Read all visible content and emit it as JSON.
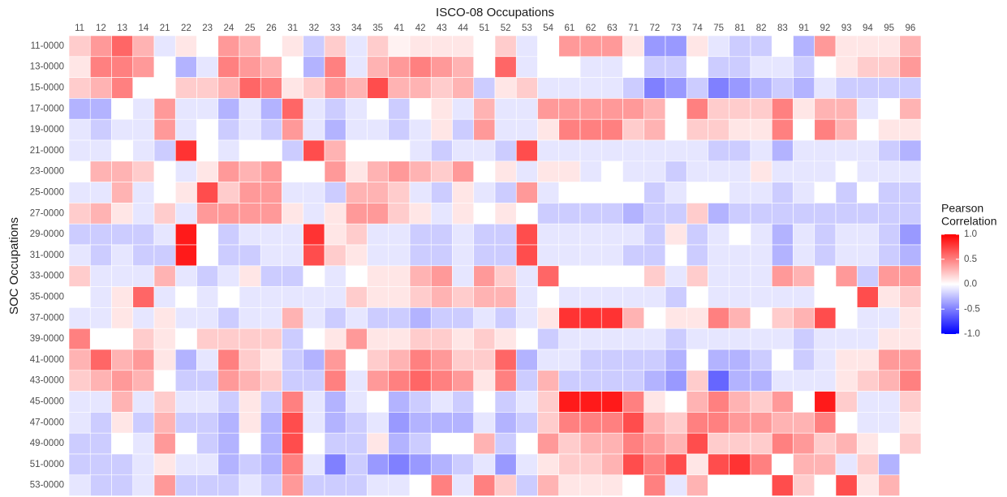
{
  "chart_data": {
    "type": "heatmap",
    "title": "ISCO-08 Occupations",
    "y_label": "SOC Occupations",
    "legend_title": [
      "Pearson",
      "Correlation"
    ],
    "x_categories": [
      "11",
      "12",
      "13",
      "14",
      "21",
      "22",
      "23",
      "24",
      "25",
      "26",
      "31",
      "32",
      "33",
      "34",
      "35",
      "41",
      "42",
      "43",
      "44",
      "51",
      "52",
      "53",
      "54",
      "61",
      "62",
      "63",
      "71",
      "72",
      "73",
      "74",
      "75",
      "81",
      "82",
      "83",
      "91",
      "92",
      "93",
      "94",
      "95",
      "96"
    ],
    "y_categories": [
      "11-0000",
      "13-0000",
      "15-0000",
      "17-0000",
      "19-0000",
      "21-0000",
      "23-0000",
      "25-0000",
      "27-0000",
      "29-0000",
      "31-0000",
      "33-0000",
      "35-0000",
      "37-0000",
      "39-0000",
      "41-0000",
      "43-0000",
      "45-0000",
      "47-0000",
      "49-0000",
      "51-0000",
      "53-0000"
    ],
    "values": [
      [
        0.2,
        0.4,
        0.6,
        0.3,
        -0.1,
        0.1,
        0,
        0.4,
        0.3,
        0,
        0.1,
        -0.2,
        0.2,
        -0.1,
        0.2,
        0.05,
        0.1,
        0.1,
        0.1,
        0,
        0.2,
        -0.1,
        0,
        0.4,
        0.4,
        0.4,
        0.1,
        -0.4,
        -0.4,
        0.1,
        -0.1,
        -0.2,
        -0.2,
        0,
        -0.3,
        0.4,
        0.1,
        0.1,
        0.1,
        0.3
      ],
      [
        0.1,
        0.5,
        0.5,
        0.4,
        0,
        -0.3,
        -0.1,
        0.5,
        0.4,
        0.3,
        0,
        -0.3,
        0.5,
        -0.1,
        0.3,
        0.4,
        0.5,
        0.4,
        0.3,
        0,
        0.6,
        -0.1,
        0,
        0,
        -0.1,
        -0.1,
        0,
        -0.2,
        -0.2,
        0,
        -0.2,
        -0.2,
        -0.1,
        -0.1,
        -0.2,
        0,
        0.1,
        0.2,
        0.2,
        0.4
      ],
      [
        0.2,
        0.3,
        0.5,
        0,
        0,
        0.2,
        0.2,
        0.3,
        0.6,
        0.5,
        0.1,
        0.2,
        0.4,
        0.3,
        0.7,
        0.3,
        0.3,
        0.2,
        0.3,
        -0.2,
        0.1,
        0.2,
        -0.1,
        -0.1,
        -0.1,
        -0.1,
        -0.2,
        -0.5,
        -0.4,
        -0.2,
        -0.5,
        -0.4,
        -0.3,
        -0.2,
        -0.3,
        -0.1,
        -0.2,
        -0.2,
        -0.2,
        -0.2
      ],
      [
        -0.3,
        -0.3,
        0,
        -0.1,
        0.4,
        -0.1,
        -0.1,
        -0.3,
        -0.1,
        -0.3,
        0.6,
        -0.1,
        -0.2,
        -0.1,
        0,
        -0.2,
        0,
        0.1,
        -0.1,
        0.3,
        -0.1,
        -0.1,
        0.4,
        0.4,
        0.4,
        0.4,
        0.4,
        0.3,
        0,
        0.5,
        0.2,
        0.2,
        0.2,
        0.5,
        0.1,
        0.3,
        0.3,
        -0.1,
        0,
        0.3
      ],
      [
        -0.1,
        -0.2,
        -0.1,
        -0.1,
        0.4,
        -0.1,
        0,
        -0.2,
        -0.1,
        -0.2,
        0.4,
        -0.1,
        -0.3,
        -0.1,
        -0.1,
        -0.2,
        -0.1,
        0.1,
        -0.2,
        0.4,
        -0.1,
        -0.1,
        0.1,
        0.5,
        0.5,
        0.5,
        0.2,
        0.3,
        0,
        0.2,
        0.2,
        0.1,
        0.1,
        0.5,
        0,
        0.5,
        0.3,
        0,
        0.1,
        0.1
      ],
      [
        -0.1,
        -0.1,
        0,
        -0.1,
        -0.2,
        0.8,
        0,
        -0.1,
        0,
        0,
        -0.2,
        0.7,
        0.3,
        0,
        0,
        0,
        -0.1,
        -0.2,
        -0.1,
        -0.1,
        -0.2,
        0.7,
        -0.1,
        -0.1,
        -0.1,
        -0.1,
        -0.1,
        -0.1,
        -0.1,
        -0.1,
        -0.2,
        -0.2,
        -0.1,
        -0.3,
        -0.1,
        -0.1,
        -0.1,
        -0.1,
        -0.2,
        -0.3
      ],
      [
        0,
        0.3,
        0.3,
        0.2,
        0,
        -0.1,
        0.1,
        0.4,
        0.3,
        0.4,
        0,
        0,
        0.4,
        0.1,
        0.3,
        0.4,
        0.3,
        0.2,
        0.4,
        0,
        0.1,
        -0.1,
        0.1,
        0.1,
        -0.1,
        0,
        -0.1,
        -0.1,
        -0.2,
        -0.1,
        -0.1,
        -0.1,
        0.1,
        -0.1,
        -0.1,
        -0.1,
        0,
        -0.1,
        -0.1,
        -0.1
      ],
      [
        -0.1,
        -0.1,
        0.3,
        -0.1,
        0,
        0.1,
        0.7,
        0.2,
        0.4,
        0.4,
        -0.1,
        -0.1,
        -0.2,
        0.3,
        0.3,
        0.2,
        -0.1,
        -0.2,
        0.1,
        -0.1,
        -0.2,
        0.4,
        -0.1,
        0,
        0,
        0,
        0,
        -0.2,
        -0.1,
        0,
        0,
        -0.1,
        -0.1,
        -0.2,
        -0.1,
        0,
        -0.2,
        0,
        -0.2,
        -0.2
      ],
      [
        0.2,
        0.3,
        0.1,
        -0.1,
        0.2,
        -0.1,
        0.4,
        0.4,
        0.4,
        0.4,
        0.1,
        -0.1,
        0.1,
        0.4,
        0.4,
        0.2,
        0.1,
        -0.1,
        0.1,
        0,
        0.1,
        0,
        -0.2,
        -0.2,
        -0.2,
        -0.2,
        -0.3,
        -0.2,
        -0.2,
        0.2,
        -0.3,
        -0.2,
        -0.2,
        -0.2,
        -0.2,
        -0.2,
        -0.2,
        -0.2,
        -0.2,
        -0.2
      ],
      [
        -0.2,
        -0.2,
        -0.2,
        -0.2,
        -0.1,
        0.9,
        0,
        -0.2,
        -0.1,
        -0.1,
        -0.1,
        0.8,
        0.1,
        0.2,
        -0.1,
        -0.1,
        -0.2,
        -0.2,
        -0.1,
        -0.2,
        -0.2,
        0.7,
        -0.1,
        -0.1,
        -0.1,
        -0.1,
        -0.1,
        -0.2,
        0.1,
        -0.2,
        -0.1,
        0,
        -0.1,
        -0.3,
        -0.1,
        -0.2,
        -0.1,
        -0.1,
        -0.2,
        -0.4
      ],
      [
        -0.1,
        -0.2,
        -0.1,
        -0.2,
        -0.2,
        0.9,
        0,
        -0.2,
        -0.2,
        -0.1,
        -0.1,
        0.7,
        0.2,
        0.1,
        -0.1,
        -0.1,
        -0.2,
        -0.2,
        -0.1,
        -0.2,
        -0.2,
        0.7,
        -0.1,
        -0.1,
        -0.1,
        -0.1,
        -0.2,
        -0.2,
        0,
        -0.2,
        -0.1,
        -0.1,
        -0.1,
        -0.3,
        -0.1,
        -0.2,
        -0.1,
        -0.1,
        -0.2,
        -0.3
      ],
      [
        0.2,
        -0.1,
        -0.1,
        -0.1,
        0.3,
        -0.1,
        -0.2,
        -0.1,
        0.1,
        -0.2,
        -0.2,
        0,
        -0.1,
        0,
        0.1,
        0.1,
        0.3,
        0.4,
        -0.1,
        0.4,
        0.2,
        -0.1,
        0.6,
        0,
        0,
        0,
        0,
        0.2,
        -0.1,
        0.2,
        -0.1,
        -0.1,
        -0.1,
        0.4,
        0.3,
        0,
        0.4,
        -0.2,
        0.4,
        0.4
      ],
      [
        0,
        -0.1,
        0.1,
        0.6,
        -0.1,
        0,
        -0.1,
        0,
        -0.1,
        -0.1,
        -0.1,
        -0.1,
        -0.1,
        0.2,
        0.1,
        0.1,
        0.2,
        0.3,
        0.2,
        0.3,
        0.3,
        -0.1,
        0,
        -0.1,
        -0.1,
        -0.1,
        -0.1,
        -0.1,
        -0.2,
        0,
        -0.1,
        -0.1,
        -0.1,
        -0.1,
        -0.1,
        0,
        0,
        0.7,
        0.1,
        0.2
      ],
      [
        -0.1,
        -0.1,
        0.1,
        -0.1,
        0.1,
        -0.1,
        -0.1,
        -0.2,
        -0.1,
        -0.1,
        0.3,
        -0.1,
        -0.2,
        -0.1,
        -0.2,
        -0.2,
        -0.3,
        -0.2,
        -0.2,
        -0.1,
        -0.2,
        -0.1,
        0.1,
        0.8,
        0.8,
        0.8,
        0.3,
        0,
        0.1,
        0.1,
        0.5,
        0.3,
        0,
        0.2,
        0.3,
        0.7,
        0,
        -0.1,
        -0.1,
        0.1
      ],
      [
        0.5,
        0,
        0,
        0.2,
        0.1,
        0,
        0.2,
        0.2,
        0.2,
        0.2,
        -0.2,
        0,
        0.1,
        0.4,
        0.1,
        0.1,
        0.2,
        0.2,
        0.1,
        0.2,
        0.1,
        0,
        -0.2,
        -0.1,
        -0.1,
        -0.1,
        -0.1,
        -0.1,
        -0.2,
        -0.1,
        -0.1,
        -0.1,
        -0.1,
        -0.1,
        -0.2,
        -0.1,
        -0.1,
        -0.1,
        0.1,
        0.1
      ],
      [
        0.3,
        0.6,
        0.3,
        0.4,
        0.1,
        -0.3,
        -0.1,
        0.5,
        0.2,
        0.1,
        -0.2,
        -0.3,
        0.4,
        0,
        0.2,
        0.3,
        0.5,
        0.4,
        0.2,
        0.2,
        0.6,
        -0.3,
        -0.1,
        -0.1,
        -0.2,
        -0.2,
        -0.2,
        -0.2,
        -0.3,
        0,
        -0.3,
        -0.3,
        -0.2,
        0,
        -0.2,
        -0.1,
        0.1,
        0.1,
        0.4,
        0.4
      ],
      [
        0.2,
        0.3,
        0.4,
        0.3,
        0,
        -0.2,
        -0.2,
        0.4,
        0.3,
        0.2,
        -0.2,
        -0.2,
        0.5,
        -0.1,
        0.4,
        0.5,
        0.6,
        0.5,
        0.4,
        0.1,
        0.5,
        -0.2,
        0.3,
        -0.2,
        -0.2,
        -0.2,
        -0.2,
        -0.3,
        -0.4,
        0.2,
        -0.6,
        -0.3,
        -0.3,
        -0.1,
        -0.1,
        -0.1,
        0.1,
        0.2,
        0.3,
        0.5
      ],
      [
        -0.1,
        -0.1,
        0.3,
        -0.1,
        0.2,
        -0.1,
        -0.1,
        -0.2,
        0.1,
        -0.2,
        0.5,
        -0.1,
        -0.3,
        -0.1,
        0,
        -0.3,
        -0.2,
        -0.1,
        -0.2,
        0,
        -0.2,
        -0.1,
        0.2,
        0.9,
        0.9,
        0.9,
        0.5,
        0.1,
        0,
        0.3,
        0.5,
        0.3,
        0.2,
        0.4,
        0,
        0.9,
        0.2,
        -0.1,
        -0.1,
        0.2
      ],
      [
        -0.1,
        -0.2,
        0.1,
        -0.2,
        0.3,
        -0.2,
        -0.2,
        -0.3,
        0.1,
        -0.3,
        0.7,
        -0.1,
        -0.3,
        -0.2,
        -0.1,
        -0.4,
        -0.3,
        -0.3,
        -0.3,
        -0.1,
        -0.3,
        -0.2,
        0.2,
        0.5,
        0.5,
        0.5,
        0.7,
        0.3,
        0.2,
        0.5,
        0.5,
        0.4,
        0.4,
        0.3,
        0.3,
        0.5,
        0,
        -0.1,
        -0.1,
        0.1
      ],
      [
        -0.2,
        -0.2,
        0,
        -0.1,
        0.4,
        0,
        -0.2,
        -0.3,
        0,
        -0.3,
        0.7,
        0,
        -0.2,
        -0.2,
        0.1,
        -0.3,
        -0.2,
        0,
        0,
        0.3,
        -0.2,
        0,
        0.4,
        0.2,
        0.3,
        0.3,
        0.5,
        0.4,
        0.3,
        0.7,
        0.2,
        0.2,
        0.2,
        0.5,
        0.4,
        0.2,
        0.3,
        0.1,
        0,
        0.2
      ],
      [
        -0.2,
        -0.2,
        -0.2,
        -0.1,
        0.1,
        -0.1,
        -0.1,
        -0.3,
        -0.2,
        -0.3,
        0.5,
        -0.1,
        -0.5,
        -0.2,
        -0.4,
        -0.5,
        -0.4,
        -0.3,
        -0.2,
        -0.1,
        -0.4,
        -0.1,
        0.1,
        0.2,
        0.2,
        0.3,
        0.7,
        0.5,
        0.7,
        0.1,
        0.7,
        0.8,
        0.5,
        0,
        0.3,
        0.3,
        -0.1,
        0.2,
        -0.3,
        0
      ],
      [
        -0.1,
        -0.2,
        -0.2,
        -0.1,
        0.4,
        -0.2,
        -0.2,
        -0.2,
        -0.1,
        -0.2,
        0.4,
        -0.2,
        -0.2,
        -0.2,
        -0.1,
        -0.1,
        0,
        0.5,
        -0.1,
        0.5,
        0.2,
        -0.2,
        0.3,
        0.1,
        0.1,
        0.1,
        0,
        0.5,
        -0.1,
        0.3,
        0,
        0,
        0,
        0.7,
        0.2,
        0,
        0.7,
        0.1,
        0.3,
        0
      ]
    ],
    "color_scale": {
      "low": "#0000ff",
      "mid": "#ffffff",
      "high": "#ff0000"
    },
    "clim": [
      -1,
      1
    ],
    "cticks": [
      {
        "value": 1,
        "label": "1.0"
      },
      0.5,
      {
        "value": 0,
        "label": "0.0"
      },
      -0.5,
      {
        "value": -1,
        "label": "-1.0"
      }
    ]
  }
}
